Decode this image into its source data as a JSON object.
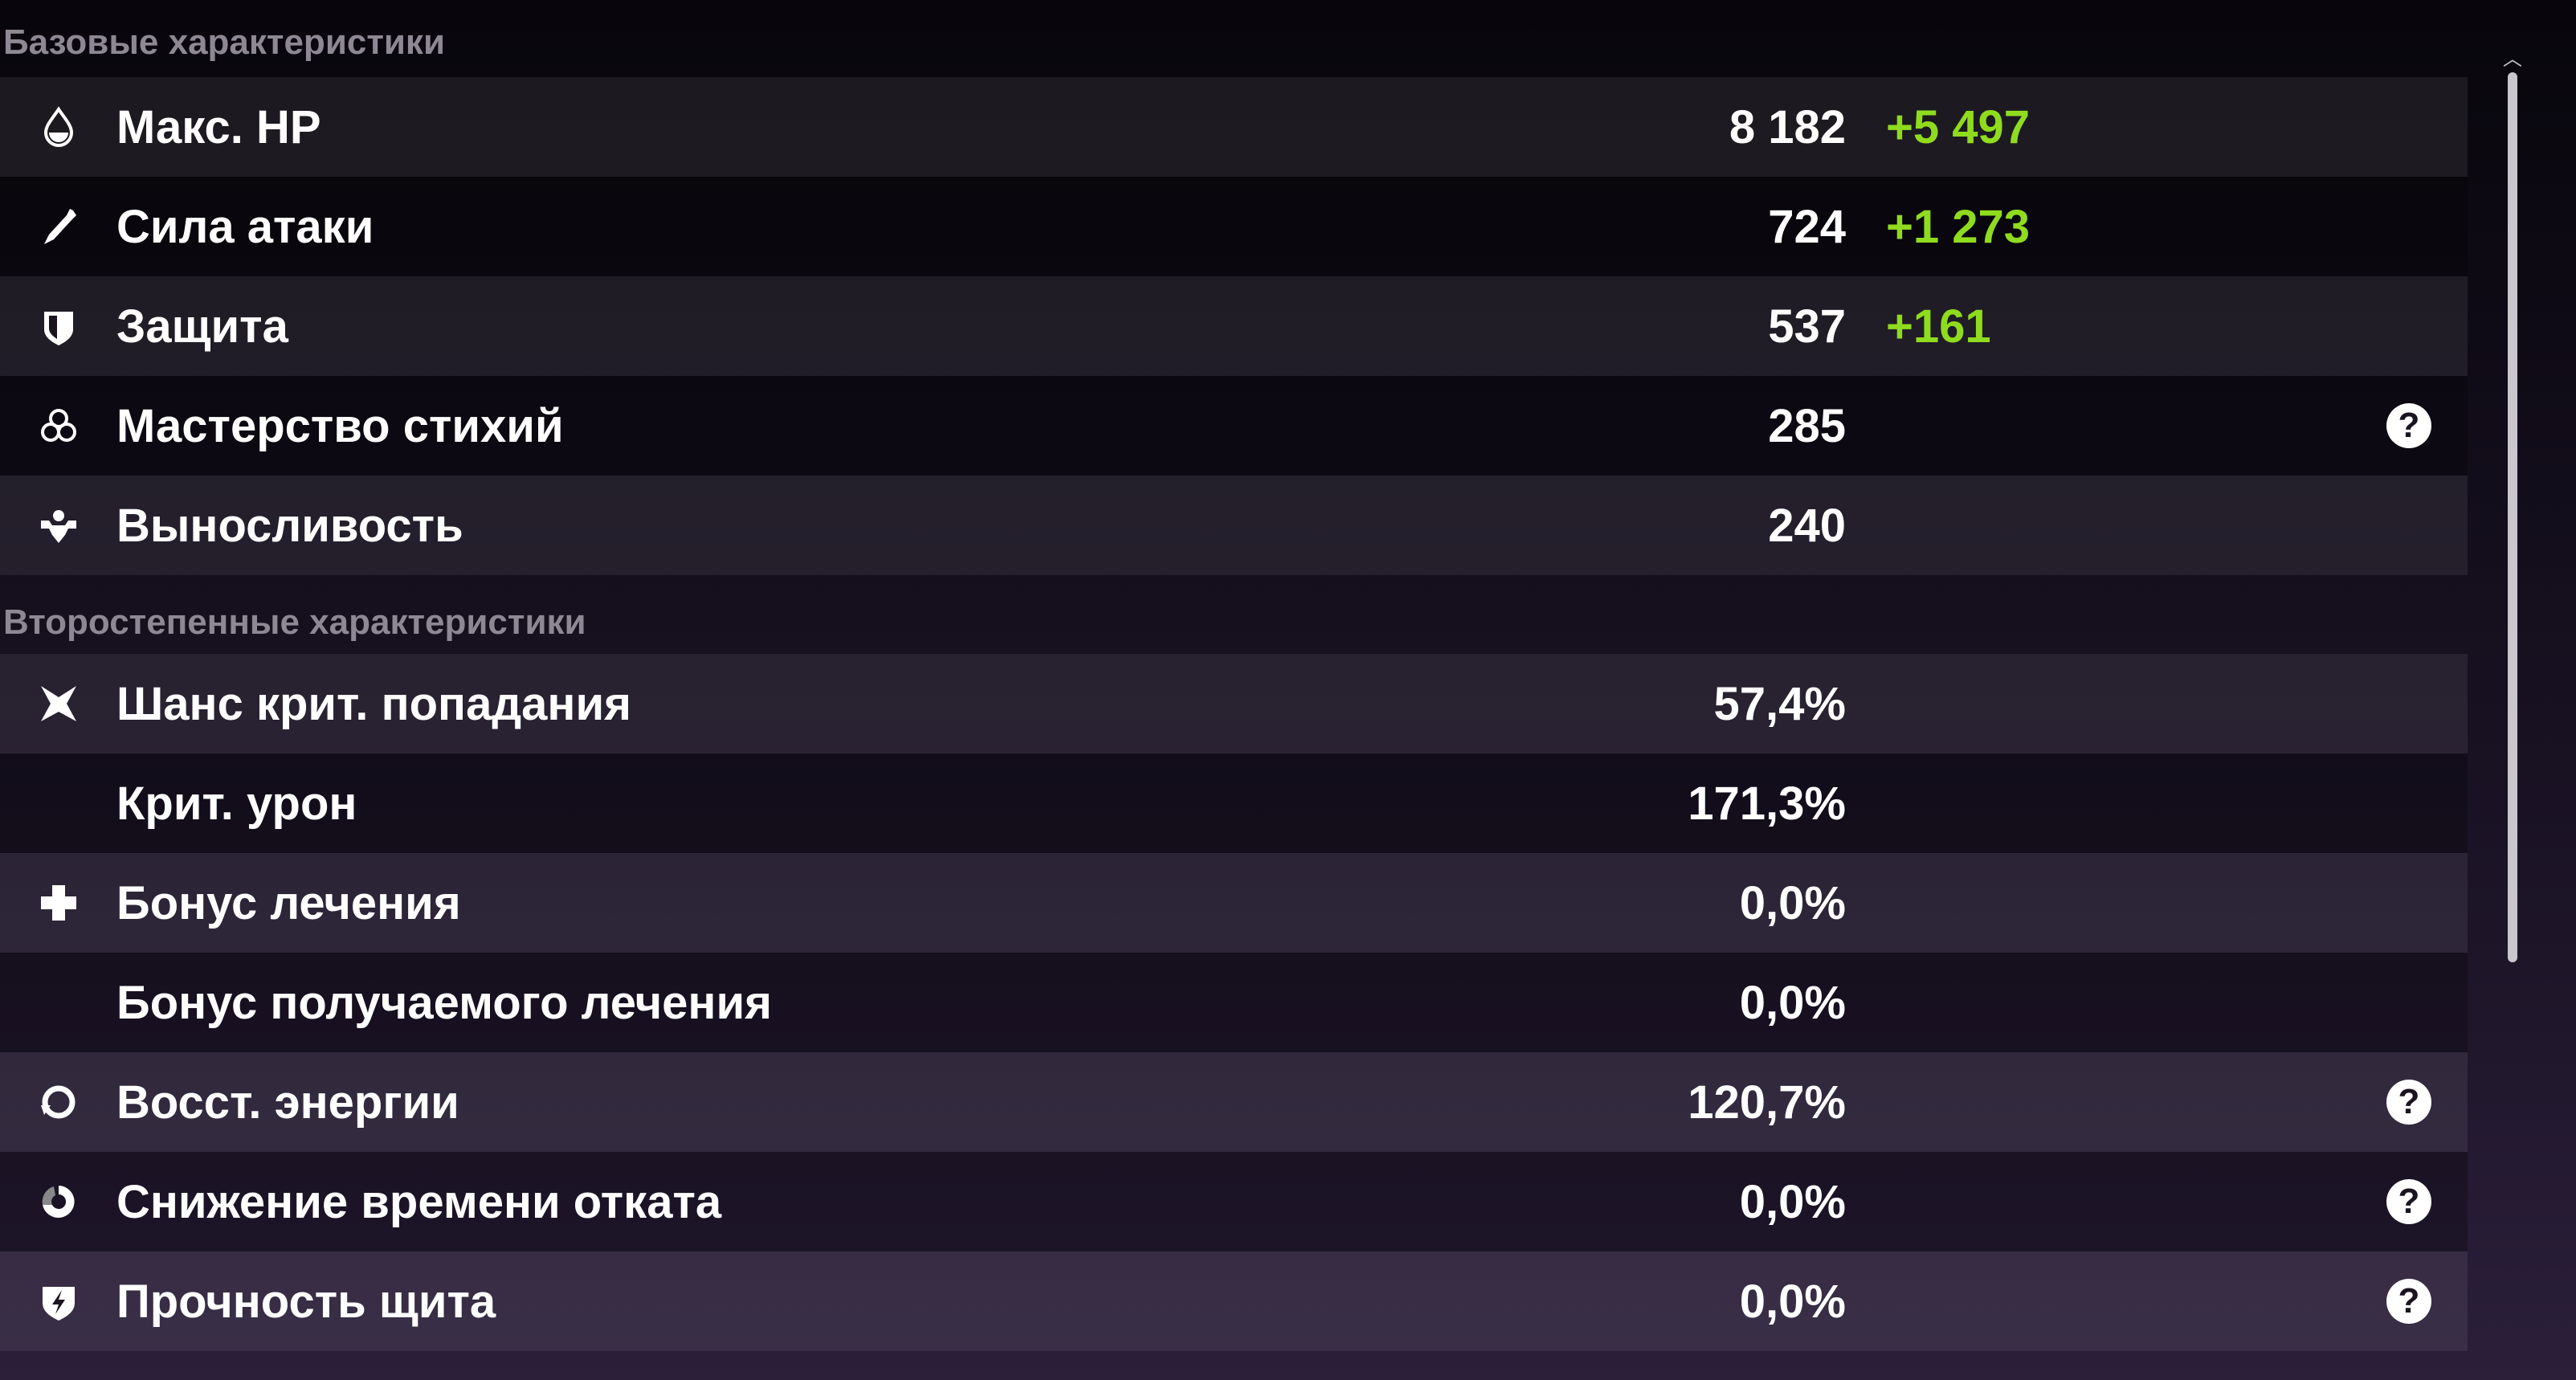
{
  "basic": {
    "title": "Базовые характеристики",
    "rows": [
      {
        "icon": "hp-drop-icon",
        "label": "Макс. HP",
        "value": "8 182",
        "bonus": "+5 497",
        "help": false
      },
      {
        "icon": "sword-icon",
        "label": "Сила атаки",
        "value": "724",
        "bonus": "+1 273",
        "help": false
      },
      {
        "icon": "shield-icon",
        "label": "Защита",
        "value": "537",
        "bonus": "+161",
        "help": false
      },
      {
        "icon": "elemental-mastery-icon",
        "label": "Мастерство стихий",
        "value": "285",
        "bonus": "",
        "help": true
      },
      {
        "icon": "stamina-icon",
        "label": "Выносливость",
        "value": "240",
        "bonus": "",
        "help": false
      }
    ]
  },
  "advanced": {
    "title": "Второстепенные характеристики",
    "rows": [
      {
        "icon": "crit-rate-icon",
        "label": "Шанс крит. попадания",
        "value": "57,4%",
        "help": false
      },
      {
        "icon": "",
        "label": "Крит. урон",
        "value": "171,3%",
        "help": false
      },
      {
        "icon": "healing-bonus-icon",
        "label": "Бонус лечения",
        "value": "0,0%",
        "help": false
      },
      {
        "icon": "",
        "label": "Бонус получаемого лечения",
        "value": "0,0%",
        "help": false
      },
      {
        "icon": "energy-recharge-icon",
        "label": "Восст. энергии",
        "value": "120,7%",
        "help": true
      },
      {
        "icon": "cooldown-reduction-icon",
        "label": "Снижение времени отката",
        "value": "0,0%",
        "help": true
      },
      {
        "icon": "shield-strength-icon",
        "label": "Прочность щита",
        "value": "0,0%",
        "help": true
      }
    ]
  },
  "help_glyph": "?",
  "colors": {
    "bonus": "#8fdc1e",
    "section_title": "#8d8893"
  }
}
